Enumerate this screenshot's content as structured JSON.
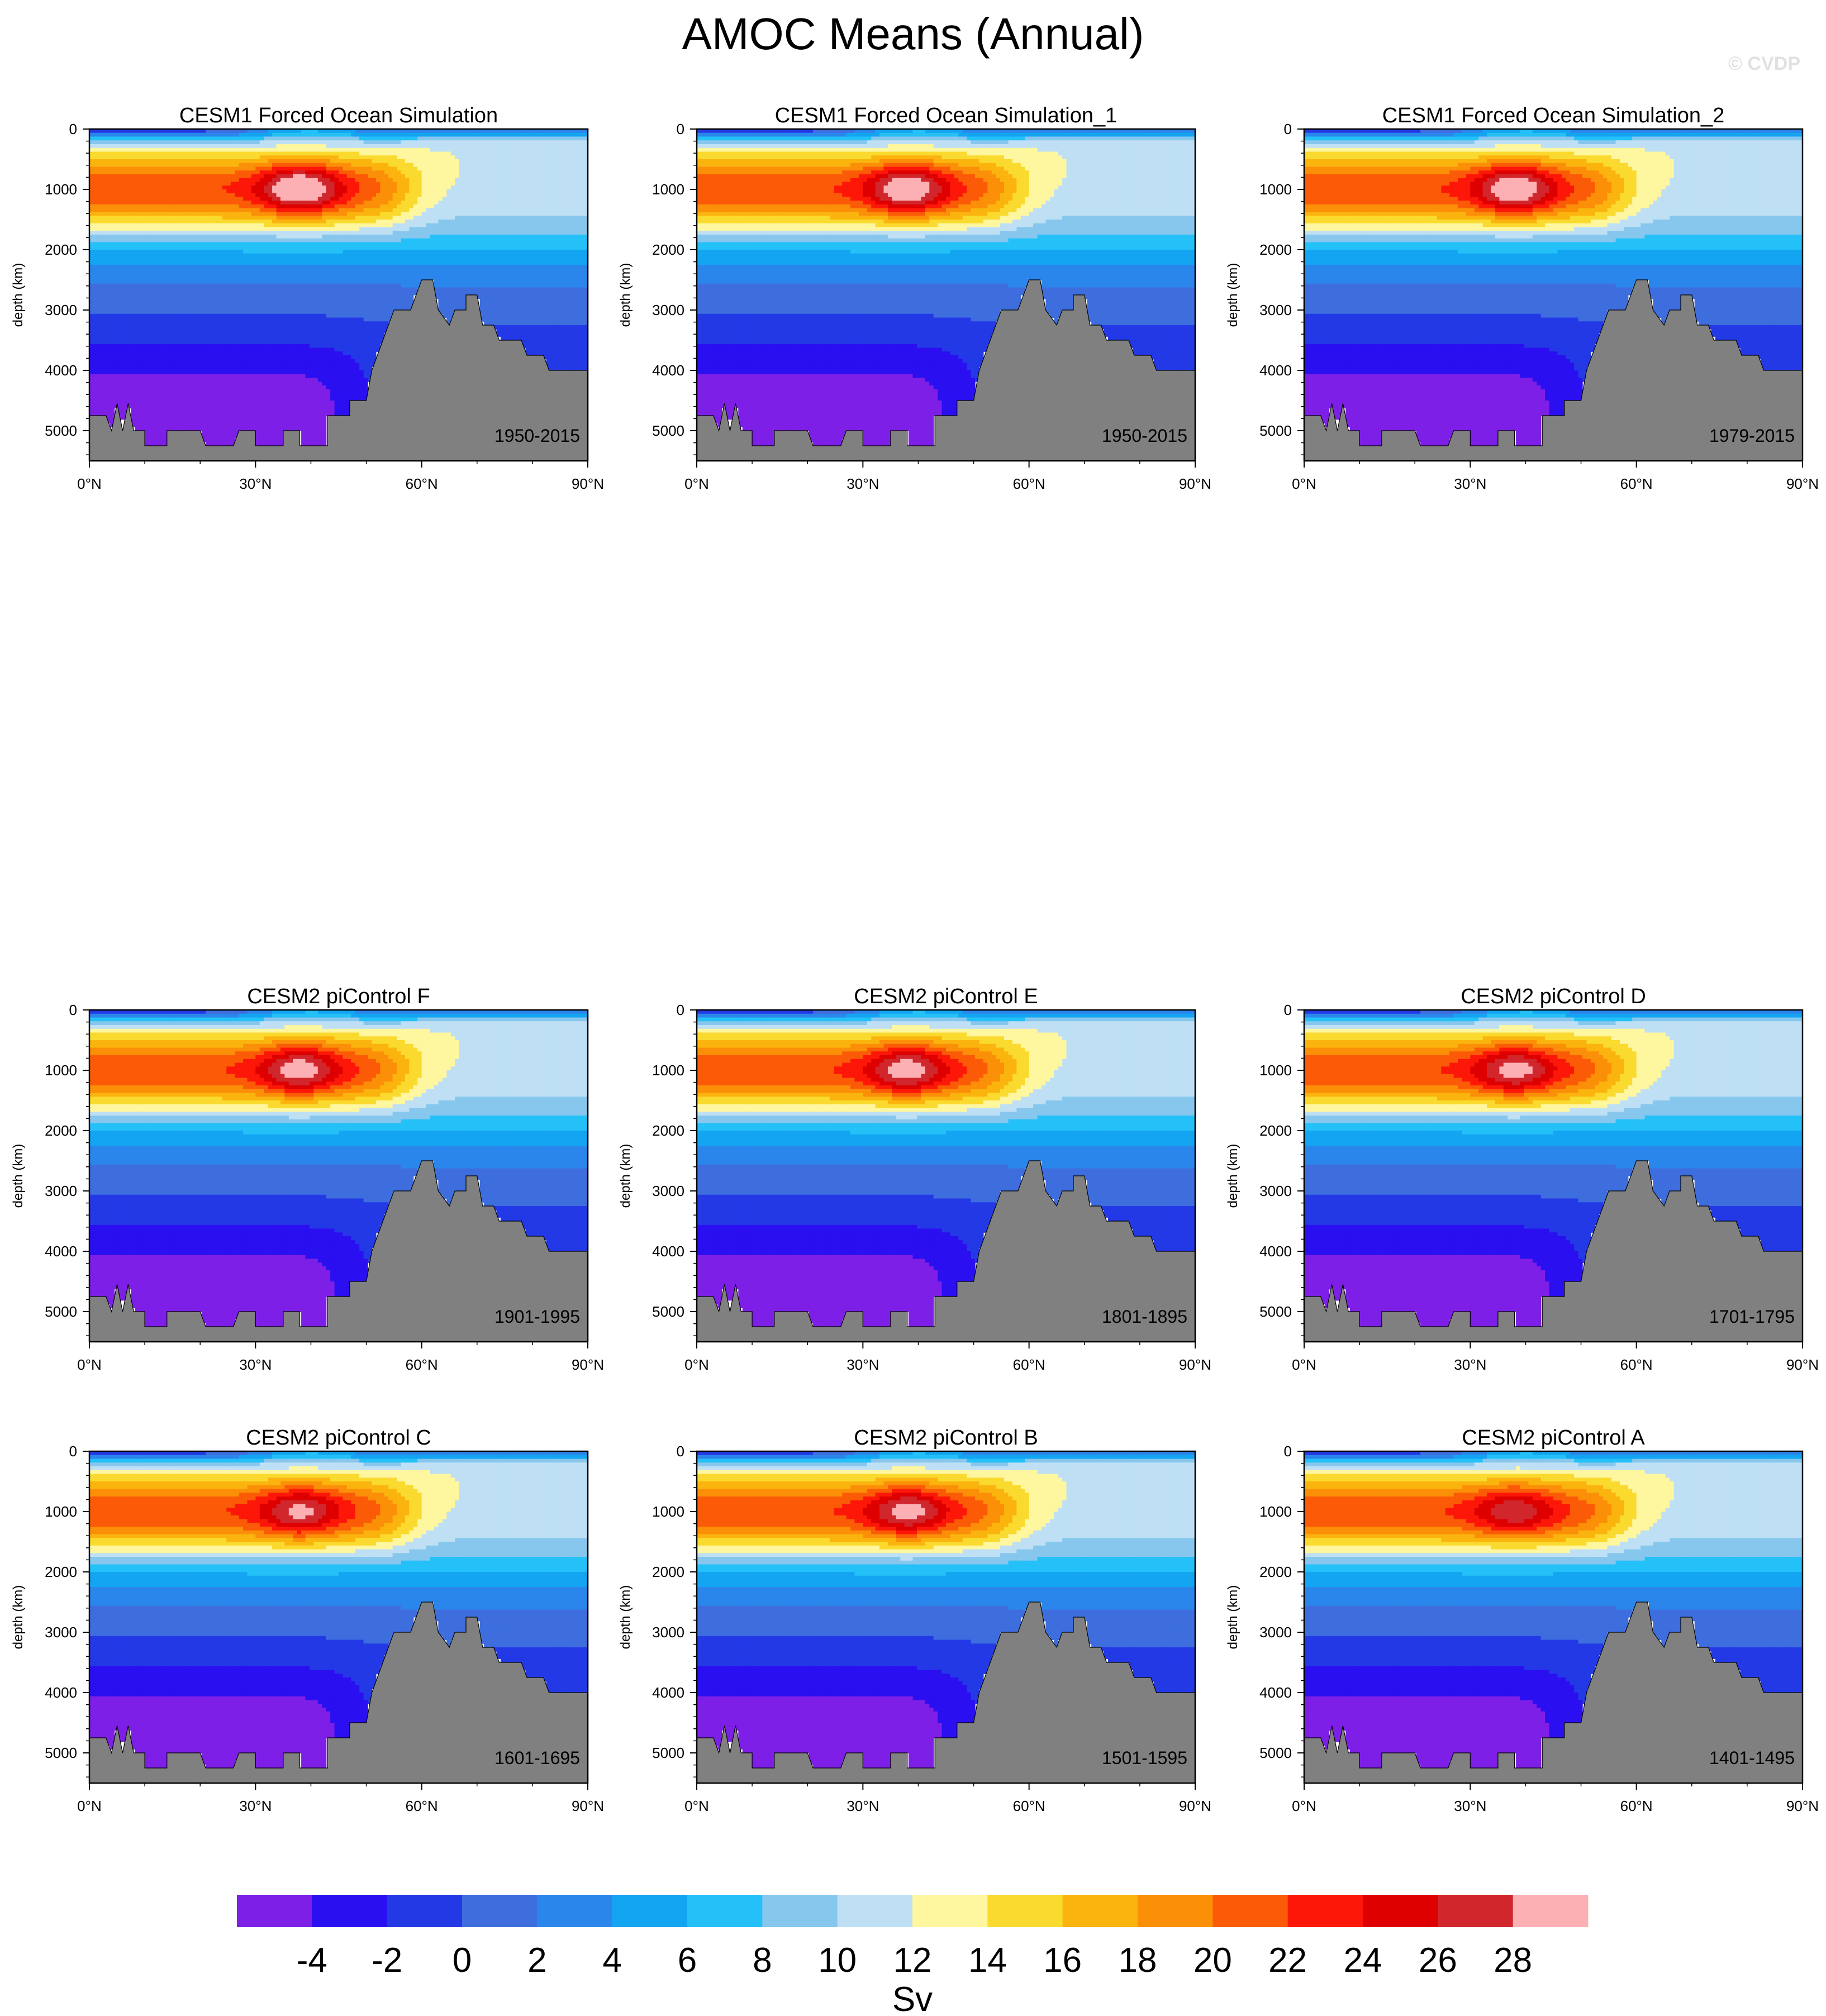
{
  "figure": {
    "title": "AMOC Means (Annual)",
    "watermark": "© CVDP"
  },
  "chart_data": [
    {
      "type": "heatmap",
      "title": "CESM1 Forced Ocean Simulation",
      "period": "1950-2015",
      "ylabel": "depth (km)",
      "xlabel": "",
      "x_ticks": [
        "0°N",
        "30°N",
        "60°N",
        "90°N"
      ],
      "y_ticks": [
        "0",
        "1000",
        "2000",
        "3000",
        "4000",
        "5000"
      ],
      "xlim": [
        0,
        90
      ],
      "ylim": [
        5500,
        0
      ],
      "max_sv": 27
    },
    {
      "type": "heatmap",
      "title": "CESM1 Forced Ocean Simulation_1",
      "period": "1950-2015",
      "ylabel": "depth (km)",
      "xlabel": "",
      "x_ticks": [
        "0°N",
        "30°N",
        "60°N",
        "90°N"
      ],
      "y_ticks": [
        "0",
        "1000",
        "2000",
        "3000",
        "4000",
        "5000"
      ],
      "xlim": [
        0,
        90
      ],
      "ylim": [
        5500,
        0
      ],
      "max_sv": 26
    },
    {
      "type": "heatmap",
      "title": "CESM1 Forced Ocean Simulation_2",
      "period": "1979-2015",
      "ylabel": "depth (km)",
      "xlabel": "",
      "x_ticks": [
        "0°N",
        "30°N",
        "60°N",
        "90°N"
      ],
      "y_ticks": [
        "0",
        "1000",
        "2000",
        "3000",
        "4000",
        "5000"
      ],
      "xlim": [
        0,
        90
      ],
      "ylim": [
        5500,
        0
      ],
      "max_sv": 26
    },
    {
      "type": "heatmap",
      "title": "CESM2 piControl F",
      "period": "1901-1995",
      "ylabel": "depth (km)",
      "xlabel": "",
      "x_ticks": [
        "0°N",
        "30°N",
        "60°N",
        "90°N"
      ],
      "y_ticks": [
        "0",
        "1000",
        "2000",
        "3000",
        "4000",
        "5000"
      ],
      "xlim": [
        0,
        90
      ],
      "ylim": [
        5500,
        0
      ],
      "max_sv": 25
    },
    {
      "type": "heatmap",
      "title": "CESM2 piControl E",
      "period": "1801-1895",
      "ylabel": "depth (km)",
      "xlabel": "",
      "x_ticks": [
        "0°N",
        "30°N",
        "60°N",
        "90°N"
      ],
      "y_ticks": [
        "0",
        "1000",
        "2000",
        "3000",
        "4000",
        "5000"
      ],
      "xlim": [
        0,
        90
      ],
      "ylim": [
        5500,
        0
      ],
      "max_sv": 25
    },
    {
      "type": "heatmap",
      "title": "CESM2 piControl D",
      "period": "1701-1795",
      "ylabel": "depth (km)",
      "xlabel": "",
      "x_ticks": [
        "0°N",
        "30°N",
        "60°N",
        "90°N"
      ],
      "y_ticks": [
        "0",
        "1000",
        "2000",
        "3000",
        "4000",
        "5000"
      ],
      "xlim": [
        0,
        90
      ],
      "ylim": [
        5500,
        0
      ],
      "max_sv": 24.5
    },
    {
      "type": "heatmap",
      "title": "CESM2 piControl C",
      "period": "1601-1695",
      "ylabel": "depth (km)",
      "xlabel": "",
      "x_ticks": [
        "0°N",
        "30°N",
        "60°N",
        "90°N"
      ],
      "y_ticks": [
        "0",
        "1000",
        "2000",
        "3000",
        "4000",
        "5000"
      ],
      "xlim": [
        0,
        90
      ],
      "ylim": [
        5500,
        0
      ],
      "max_sv": 24
    },
    {
      "type": "heatmap",
      "title": "CESM2 piControl B",
      "period": "1501-1595",
      "ylabel": "depth (km)",
      "xlabel": "",
      "x_ticks": [
        "0°N",
        "30°N",
        "60°N",
        "90°N"
      ],
      "y_ticks": [
        "0",
        "1000",
        "2000",
        "3000",
        "4000",
        "5000"
      ],
      "xlim": [
        0,
        90
      ],
      "ylim": [
        5500,
        0
      ],
      "max_sv": 24.5
    },
    {
      "type": "heatmap",
      "title": "CESM2 piControl A",
      "period": "1401-1495",
      "ylabel": "depth (km)",
      "xlabel": "",
      "x_ticks": [
        "0°N",
        "30°N",
        "60°N",
        "90°N"
      ],
      "y_ticks": [
        "0",
        "1000",
        "2000",
        "3000",
        "4000",
        "5000"
      ],
      "xlim": [
        0,
        90
      ],
      "ylim": [
        5500,
        0
      ],
      "max_sv": 23
    }
  ],
  "colorbar": {
    "unit": "Sv",
    "labels": [
      "-4",
      "-2",
      "0",
      "2",
      "4",
      "6",
      "8",
      "10",
      "12",
      "14",
      "16",
      "18",
      "20",
      "22",
      "24",
      "26",
      "28"
    ],
    "levels": [
      -5,
      -4,
      -3,
      -2,
      -1,
      0,
      1,
      2,
      3,
      4,
      5,
      6,
      7,
      8,
      9,
      10,
      11,
      12,
      13,
      14,
      15,
      16,
      17,
      18,
      19,
      20,
      21,
      22,
      23,
      24,
      25,
      26,
      27,
      28,
      29
    ],
    "label_values": [
      -4,
      -2,
      0,
      2,
      4,
      6,
      8,
      10,
      12,
      14,
      16,
      18,
      20,
      22,
      24,
      26,
      28
    ],
    "colors": [
      "#7d1fe6",
      "#2a0ff0",
      "#2339e6",
      "#3e6ede",
      "#2b86ec",
      "#14a5f2",
      "#24c0f8",
      "#87c7ee",
      "#bfe0f4",
      "#fff6a0",
      "#fada2e",
      "#fbb40e",
      "#fb8f08",
      "#fb5b06",
      "#fd1708",
      "#de0000",
      "#d0262c",
      "#fcb0b4"
    ],
    "land_color": "#808080"
  }
}
